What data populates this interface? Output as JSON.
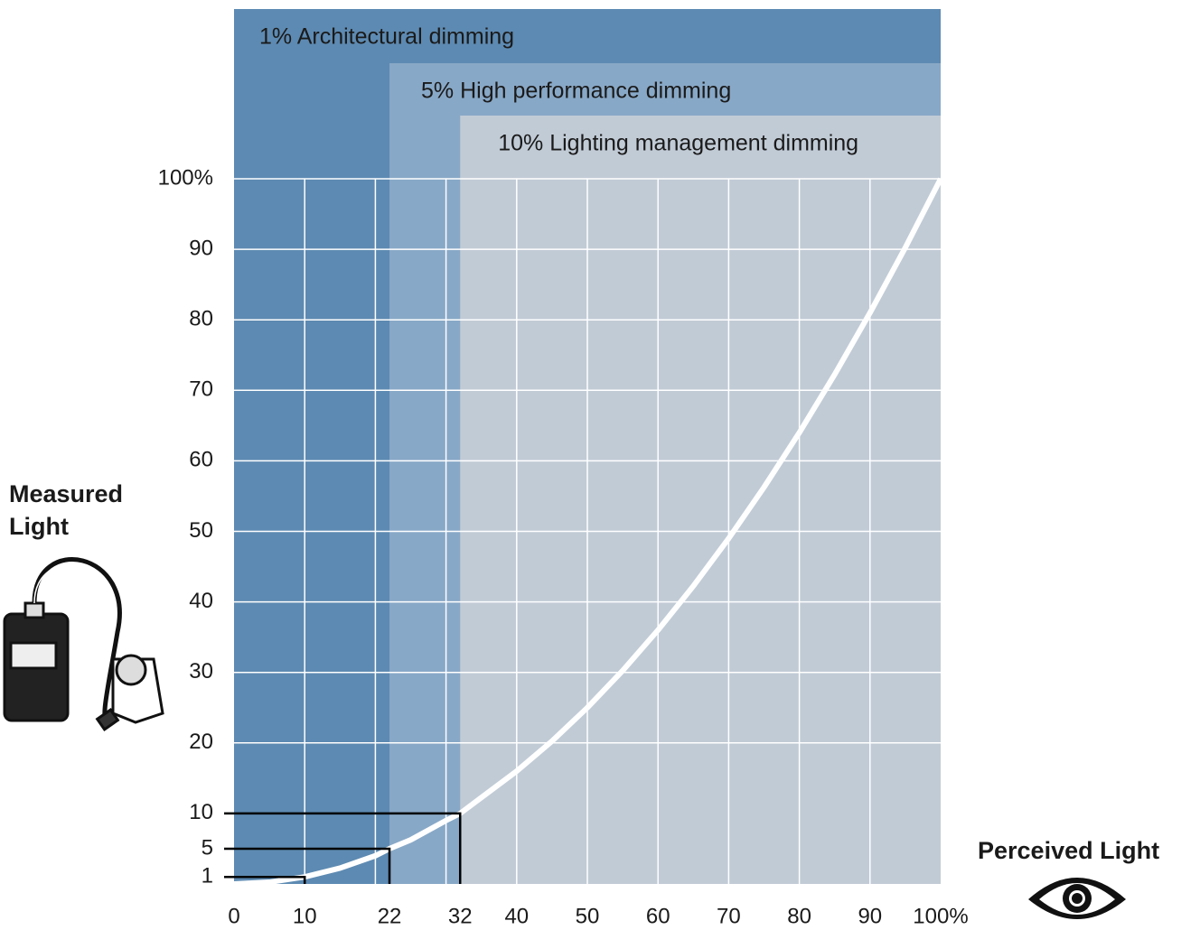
{
  "chart_data": {
    "type": "line",
    "xlabel": "Perceived Light",
    "ylabel": "Measured Light",
    "x": [
      0,
      5,
      10,
      15,
      20,
      22,
      25,
      30,
      32,
      35,
      40,
      45,
      50,
      55,
      60,
      65,
      70,
      75,
      80,
      85,
      90,
      95,
      100
    ],
    "series": [
      {
        "color": "#ffffff",
        "values": [
          0,
          0.25,
          1,
          2.25,
          4,
          5,
          6.25,
          9,
          10,
          12.25,
          16,
          20.25,
          25,
          30.25,
          36,
          42.25,
          49,
          56.25,
          64,
          72.25,
          81,
          90.25,
          100
        ]
      }
    ],
    "xlim": [
      0,
      100
    ],
    "ylim": [
      0,
      100
    ],
    "xticks": [
      0,
      10,
      22,
      32,
      40,
      50,
      60,
      70,
      80,
      90,
      {
        "value": 100,
        "label": "100%"
      }
    ],
    "yticks": [
      1,
      5,
      10,
      20,
      30,
      40,
      50,
      60,
      70,
      80,
      90,
      {
        "value": 100,
        "label": "100%"
      }
    ],
    "xgrid": [
      10,
      20,
      30,
      40,
      50,
      60,
      70,
      80,
      90
    ],
    "ygrid": [
      20,
      30,
      40,
      50,
      60,
      70,
      80,
      90,
      100
    ],
    "highlights": {
      "x": [
        10,
        22,
        32
      ],
      "y": [
        1,
        5,
        10
      ]
    },
    "bands": [
      {
        "label": "1% Architectural dimming",
        "from": 0,
        "color": "#5d8ab2",
        "text_color": "#ffffff"
      },
      {
        "label": "5% High performance dimming",
        "from": 22,
        "color": "#88a8c7",
        "text_color": "#1a1a1a"
      },
      {
        "label": "10% Lighting management dimming",
        "from": 32,
        "color": "#c1cbd6",
        "text_color": "#1a1a1a"
      }
    ]
  }
}
